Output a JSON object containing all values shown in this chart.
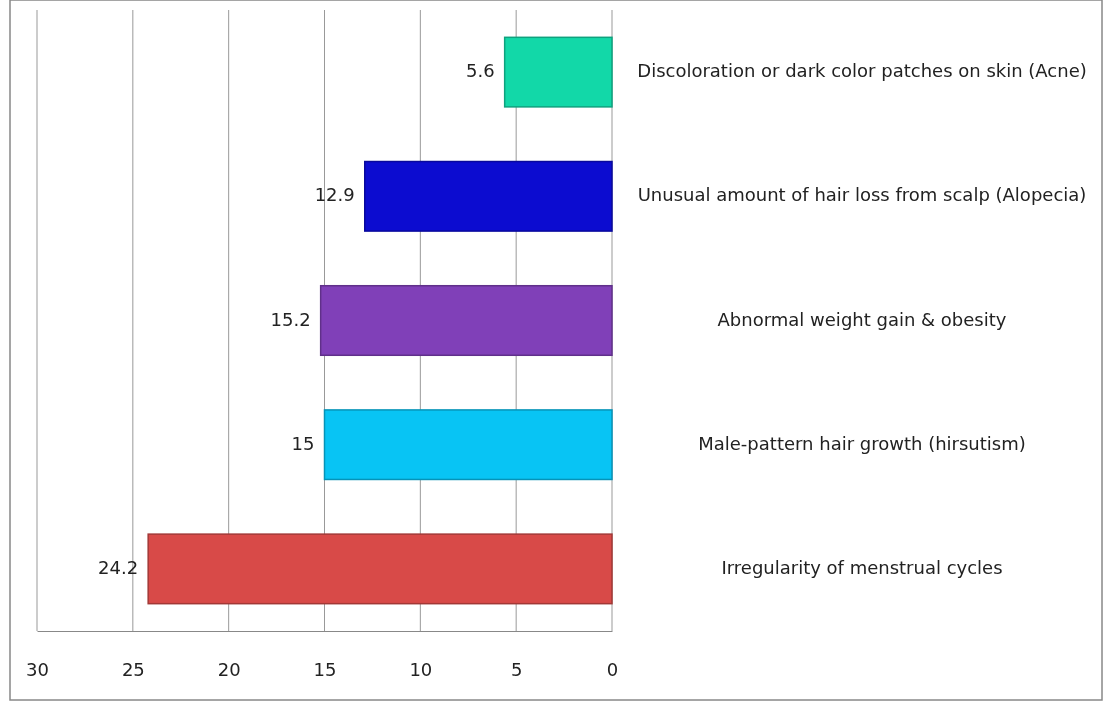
{
  "chart_data": {
    "type": "bar",
    "orientation": "horizontal",
    "categories": [
      "Discoloration or dark color patches on skin (Acne)",
      "Unusual amount of hair loss from scalp (Alopecia)",
      "Abnormal weight gain & obesity",
      "Male-pattern hair growth (hirsutism)",
      "Irregularity of  menstrual cycles"
    ],
    "values": [
      5.6,
      12.9,
      15.2,
      15,
      24.2
    ],
    "colors": [
      "#12d8a8",
      "#0c0cd0",
      "#8040b8",
      "#08c4f4",
      "#d84a48"
    ],
    "xlim": [
      30,
      0
    ],
    "xticks": [
      30,
      25,
      20,
      15,
      10,
      5,
      0
    ],
    "grid": "x",
    "data_labels": true
  }
}
